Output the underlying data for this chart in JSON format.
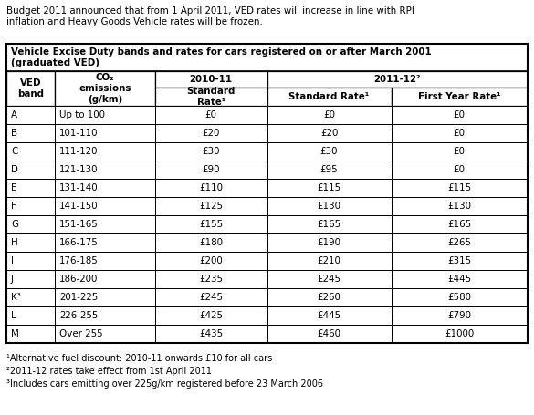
{
  "intro_text": "Budget 2011 announced that from 1 April 2011, VED rates will increase in line with RPI\ninflation and Heavy Goods Vehicle rates will be frozen.",
  "table_title": "Vehicle Excise Duty bands and rates for cars registered on or after March 2001\n(graduated VED)",
  "rows": [
    [
      "A",
      "Up to 100",
      "£0",
      "£0",
      "£0"
    ],
    [
      "B",
      "101-110",
      "£20",
      "£20",
      "£0"
    ],
    [
      "C",
      "111-120",
      "£30",
      "£30",
      "£0"
    ],
    [
      "D",
      "121-130",
      "£90",
      "£95",
      "£0"
    ],
    [
      "E",
      "131-140",
      "£110",
      "£115",
      "£115"
    ],
    [
      "F",
      "141-150",
      "£125",
      "£130",
      "£130"
    ],
    [
      "G",
      "151-165",
      "£155",
      "£165",
      "£165"
    ],
    [
      "H",
      "166-175",
      "£180",
      "£190",
      "£265"
    ],
    [
      "I",
      "176-185",
      "£200",
      "£210",
      "£315"
    ],
    [
      "J",
      "186-200",
      "£235",
      "£245",
      "£445"
    ],
    [
      "K³",
      "201-225",
      "£245",
      "£260",
      "£580"
    ],
    [
      "L",
      "226-255",
      "£425",
      "£445",
      "£790"
    ],
    [
      "M",
      "Over 255",
      "£435",
      "£460",
      "£1000"
    ]
  ],
  "footnotes": [
    "¹Alternative fuel discount: 2010-11 onwards £10 for all cars",
    "²2011-12 rates take effect from 1st April 2011",
    "³Includes cars emitting over 225g/km registered before 23 March 2006"
  ],
  "bg_color": "#ffffff",
  "text_color": "#000000",
  "fig_width": 5.85,
  "fig_height": 4.55,
  "dpi": 100
}
